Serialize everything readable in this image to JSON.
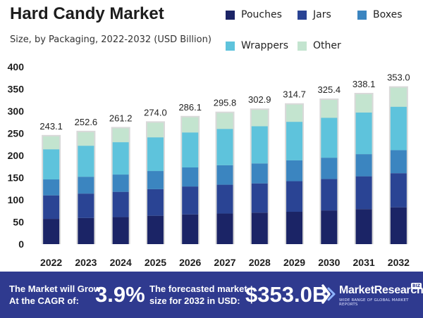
{
  "header": {
    "title": "Hard Candy Market",
    "subtitle": "Size, by Packaging, 2022-2032 (USD Billion)"
  },
  "chart_data": {
    "type": "stacked-bar",
    "title": "Hard Candy Market",
    "subtitle": "Size, by Packaging, 2022-2032 (USD Billion)",
    "xlabel": "",
    "ylabel": "",
    "ylim": [
      0,
      400
    ],
    "yticks": [
      0,
      50,
      100,
      150,
      200,
      250,
      300,
      350,
      400
    ],
    "categories": [
      "2022",
      "2023",
      "2024",
      "2025",
      "2026",
      "2027",
      "2028",
      "2029",
      "2030",
      "2031",
      "2032"
    ],
    "totals": [
      243.1,
      252.6,
      261.2,
      274.0,
      286.1,
      295.8,
      302.9,
      314.7,
      325.4,
      338.1,
      353.0
    ],
    "total_labels": [
      "243.1",
      "252.6",
      "261.2",
      "274.0",
      "286.1",
      "295.8",
      "302.9",
      "314.7",
      "325.4",
      "338.1",
      "353.0"
    ],
    "legend_position": "top-right",
    "series": [
      {
        "name": "Pouches",
        "color": "#1b2466",
        "values": [
          57,
          59,
          61,
          64,
          67,
          69,
          71,
          73,
          76,
          79,
          83
        ]
      },
      {
        "name": "Jars",
        "color": "#2a4494",
        "values": [
          53,
          55,
          57,
          60,
          63,
          65,
          66,
          69,
          71,
          74,
          77
        ]
      },
      {
        "name": "Boxes",
        "color": "#3b85c0",
        "values": [
          36,
          38,
          39,
          41,
          43,
          44,
          45,
          47,
          48,
          50,
          52
        ]
      },
      {
        "name": "Wrappers",
        "color": "#5ec3dc",
        "values": [
          68,
          70,
          73,
          76,
          79,
          82,
          84,
          87,
          90,
          94,
          98
        ]
      },
      {
        "name": "Other",
        "color": "#c3e4cf",
        "values": [
          29.1,
          30.6,
          31.2,
          33.0,
          34.1,
          35.8,
          36.9,
          38.7,
          40.4,
          41.1,
          43.0
        ]
      }
    ]
  },
  "footer": {
    "cagr_text_line1": "The Market will Grow",
    "cagr_text_line2": "At the CAGR of:",
    "cagr_value": "3.9%",
    "forecast_text_line1": "The forecasted market",
    "forecast_text_line2": "size for 2032 in USD:",
    "forecast_value": "$353.0B",
    "brand_name": "MarketResearch",
    "brand_badge": "BIZ",
    "brand_tagline": "WIDE RANGE OF GLOBAL MARKET REPORTS"
  }
}
